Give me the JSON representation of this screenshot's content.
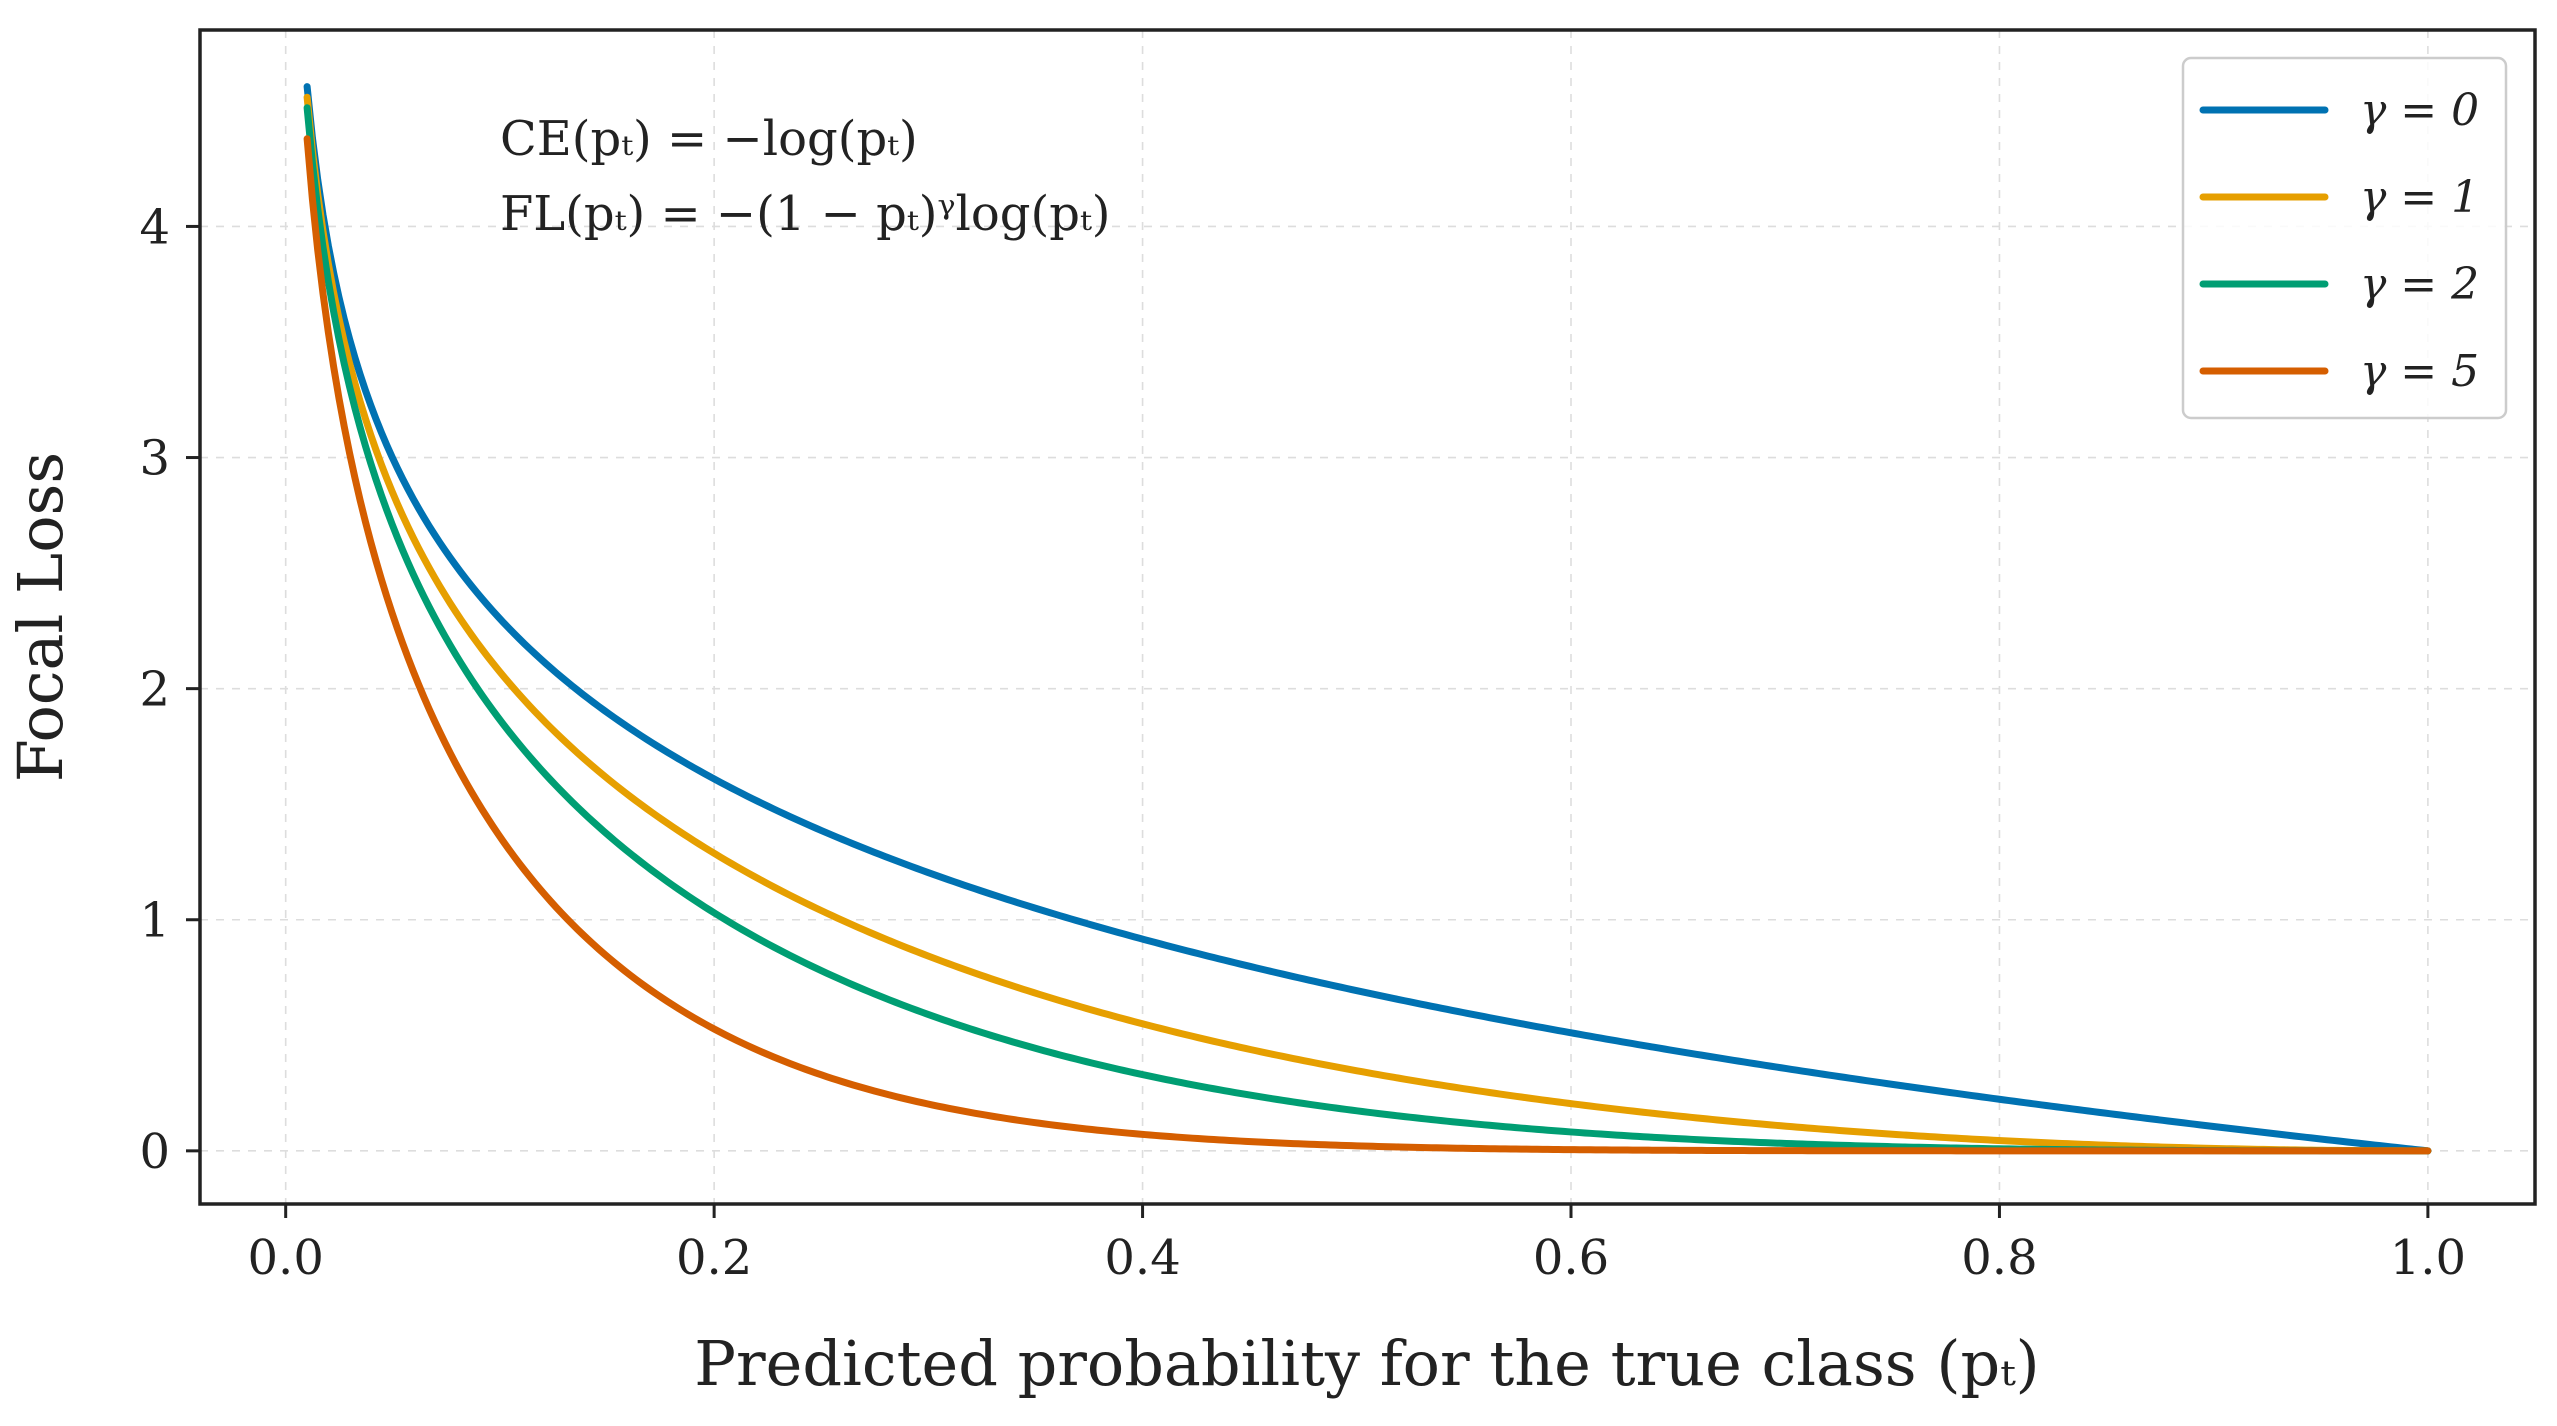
{
  "chart_data": {
    "type": "line",
    "xlabel": "Predicted probability for the true class (pₜ)",
    "ylabel": "Focal Loss",
    "xlim": [
      -0.04,
      1.05
    ],
    "ylim": [
      -0.23,
      4.85
    ],
    "xticks": [
      0.0,
      0.2,
      0.4,
      0.6,
      0.8,
      1.0
    ],
    "xtick_labels": [
      "0.0",
      "0.2",
      "0.4",
      "0.6",
      "0.8",
      "1.0"
    ],
    "yticks": [
      0,
      1,
      2,
      3,
      4
    ],
    "ytick_labels": [
      "0",
      "1",
      "2",
      "3",
      "4"
    ],
    "grid": true,
    "legend_position": "top-right",
    "annotations": [
      "CE(pₜ) = −log(pₜ)",
      "FL(pₜ) = −(1 − pₜ)ᵞlog(pₜ)"
    ],
    "x": [
      0.01,
      0.02,
      0.03,
      0.05,
      0.075,
      0.1,
      0.15,
      0.2,
      0.25,
      0.3,
      0.35,
      0.4,
      0.5,
      0.6,
      0.7,
      0.8,
      0.9,
      1.0
    ],
    "series": [
      {
        "name": "γ = 0",
        "gamma": 0,
        "color": "#0072b2",
        "values": [
          4.61,
          3.91,
          3.51,
          3.0,
          2.59,
          2.3,
          1.9,
          1.61,
          1.39,
          1.2,
          1.05,
          0.92,
          0.69,
          0.51,
          0.36,
          0.22,
          0.11,
          0.0
        ]
      },
      {
        "name": "γ = 1",
        "gamma": 1,
        "color": "#e69f00",
        "values": [
          4.56,
          3.83,
          3.4,
          2.85,
          2.4,
          2.07,
          1.61,
          1.29,
          1.04,
          0.84,
          0.68,
          0.55,
          0.35,
          0.2,
          0.11,
          0.045,
          0.011,
          0.0
        ]
      },
      {
        "name": "γ = 2",
        "gamma": 2,
        "color": "#009e73",
        "values": [
          4.51,
          3.76,
          3.3,
          2.71,
          2.22,
          1.87,
          1.37,
          1.03,
          0.78,
          0.59,
          0.44,
          0.33,
          0.17,
          0.08,
          0.03,
          0.009,
          0.001,
          0.0
        ]
      },
      {
        "name": "γ = 5",
        "gamma": 5,
        "color": "#d55e00",
        "values": [
          4.38,
          3.54,
          3.0,
          2.32,
          1.75,
          1.36,
          0.84,
          0.53,
          0.33,
          0.2,
          0.12,
          0.072,
          0.022,
          0.0052,
          0.00087,
          7e-05,
          1e-06,
          0.0
        ]
      }
    ]
  }
}
